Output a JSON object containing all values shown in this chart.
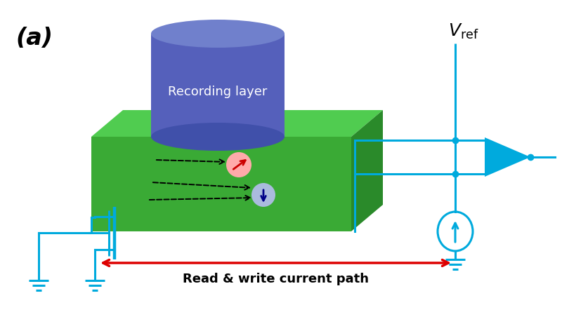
{
  "bg_color": "#ffffff",
  "label_a": "(a)",
  "label_a_fontsize": 24,
  "vref_fontsize": 18,
  "recording_layer_label": "Recording layer",
  "recording_layer_fontsize": 13,
  "read_write_label": "Read & write current path",
  "read_write_fontsize": 13,
  "circuit_color": "#00aadd",
  "green_front_color": "#3aaa35",
  "green_top_color": "#50cc50",
  "green_right_color": "#2a8a2a",
  "cyl_body_color": "#5560bb",
  "cyl_top_color": "#7080cc",
  "cyl_bot_color": "#4050aa",
  "amplifier_color": "#00aadd",
  "yellow_arrow": "#ffdd00",
  "red_arrow": "#dd0000",
  "spin_pink": "#ffaaaa",
  "spin_blue": "#aabbdd"
}
